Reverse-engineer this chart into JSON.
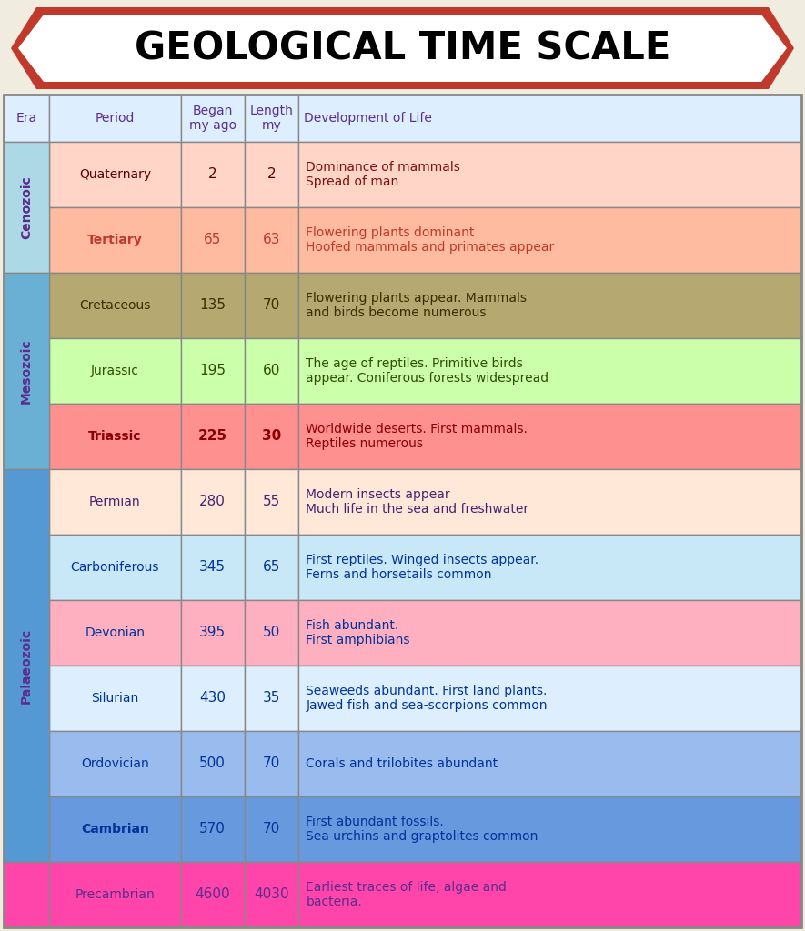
{
  "title": "GEOLOGICAL TIME SCALE",
  "title_border": "#c0392b",
  "title_border_inner": "#ffffff",
  "header": [
    "Era",
    "Period",
    "Began\nmy ago",
    "Length\nmy",
    "Development of Life"
  ],
  "header_bg": "#ddeeff",
  "header_text_color": "#5b2d8e",
  "rows": [
    {
      "era_span": "Cenozoic",
      "period": "Quaternary",
      "began": "2",
      "length": "2",
      "development": "Dominance of mammals\nSpread of man",
      "row_bg": "#ffd5c8",
      "text_color": "#5b0000",
      "dev_color": "#7b1010",
      "bold_period": false,
      "bold_nums": false
    },
    {
      "era_span": "Cenozoic",
      "period": "Tertiary",
      "began": "65",
      "length": "63",
      "development": "Flowering plants dominant\nHoofed mammals and primates appear",
      "row_bg": "#ffbba0",
      "text_color": "#c0392b",
      "dev_color": "#c0392b",
      "bold_period": true,
      "bold_nums": false
    },
    {
      "era_span": "Mesozoic",
      "period": "Cretaceous",
      "began": "135",
      "length": "70",
      "development": "Flowering plants appear. Mammals\nand birds become numerous",
      "row_bg": "#b5a870",
      "text_color": "#3d2b00",
      "dev_color": "#3d2b00",
      "bold_period": false,
      "bold_nums": false
    },
    {
      "era_span": "Mesozoic",
      "period": "Jurassic",
      "began": "195",
      "length": "60",
      "development": "The age of reptiles. Primitive birds\nappear. Coniferous forests widespread",
      "row_bg": "#ccffaa",
      "text_color": "#2d4d00",
      "dev_color": "#2d4d00",
      "bold_period": false,
      "bold_nums": false
    },
    {
      "era_span": "Mesozoic",
      "period": "Triassic",
      "began": "225",
      "length": "30",
      "development": "Worldwide deserts. First mammals.\nReptiles numerous",
      "row_bg": "#ff9090",
      "text_color": "#8b0000",
      "dev_color": "#8b0000",
      "bold_period": true,
      "bold_nums": true
    },
    {
      "era_span": "Palaeozoic",
      "period": "Permian",
      "began": "280",
      "length": "55",
      "development": "Modern insects appear\nMuch life in the sea and freshwater",
      "row_bg": "#ffe8d8",
      "text_color": "#4a2070",
      "dev_color": "#4a2070",
      "bold_period": false,
      "bold_nums": false
    },
    {
      "era_span": "Palaeozoic",
      "period": "Carboniferous",
      "began": "345",
      "length": "65",
      "development": "First reptiles. Winged insects appear.\nFerns and horsetails common",
      "row_bg": "#c8e8f8",
      "text_color": "#003399",
      "dev_color": "#003399",
      "bold_period": false,
      "bold_nums": false
    },
    {
      "era_span": "Palaeozoic",
      "period": "Devonian",
      "began": "395",
      "length": "50",
      "development": "Fish abundant.\nFirst amphibians",
      "row_bg": "#ffb0c0",
      "text_color": "#003399",
      "dev_color": "#003399",
      "bold_period": false,
      "bold_nums": false
    },
    {
      "era_span": "Palaeozoic",
      "period": "Silurian",
      "began": "430",
      "length": "35",
      "development": "Seaweeds abundant. First land plants.\nJawed fish and sea-scorpions common",
      "row_bg": "#ddeeff",
      "text_color": "#003399",
      "dev_color": "#003399",
      "bold_period": false,
      "bold_nums": false
    },
    {
      "era_span": "Palaeozoic",
      "period": "Ordovician",
      "began": "500",
      "length": "70",
      "development": "Corals and trilobites abundant",
      "row_bg": "#99bbee",
      "text_color": "#003399",
      "dev_color": "#003399",
      "bold_period": false,
      "bold_nums": false
    },
    {
      "era_span": "Palaeozoic",
      "period": "Cambrian",
      "began": "570",
      "length": "70",
      "development": "First abundant fossils.\nSea urchins and graptolites common",
      "row_bg": "#6699dd",
      "text_color": "#003399",
      "dev_color": "#003399",
      "bold_period": true,
      "bold_nums": false
    },
    {
      "era_span": "",
      "period": "Precambrian",
      "began": "4600",
      "length": "4030",
      "development": "Earliest traces of life, algae and\nbacteria.",
      "row_bg": "#ff44aa",
      "text_color": "#5b2d8e",
      "dev_color": "#5b2d8e",
      "bold_period": false,
      "bold_nums": false
    }
  ],
  "era_spans": [
    {
      "name": "Cenozoic",
      "start": 0,
      "end": 2,
      "bg": "#add8e6",
      "text_color": "#5b2d8e"
    },
    {
      "name": "Mesozoic",
      "start": 2,
      "end": 5,
      "bg": "#6ab0d4",
      "text_color": "#5b2d8e"
    },
    {
      "name": "Palaeozoic",
      "start": 5,
      "end": 11,
      "bg": "#5599d4",
      "text_color": "#5b2d8e"
    },
    {
      "name": "",
      "start": 11,
      "end": 12,
      "bg": "#ff44aa",
      "text_color": "#ffffff"
    }
  ],
  "fig_bg": "#f0ede0",
  "table_bg": "#f8f8ee",
  "grid_color": "#888888",
  "grid_lw": 1.0,
  "title_fontsize": 30,
  "header_fontsize": 10,
  "cell_fontsize": 10,
  "era_fontsize": 10
}
